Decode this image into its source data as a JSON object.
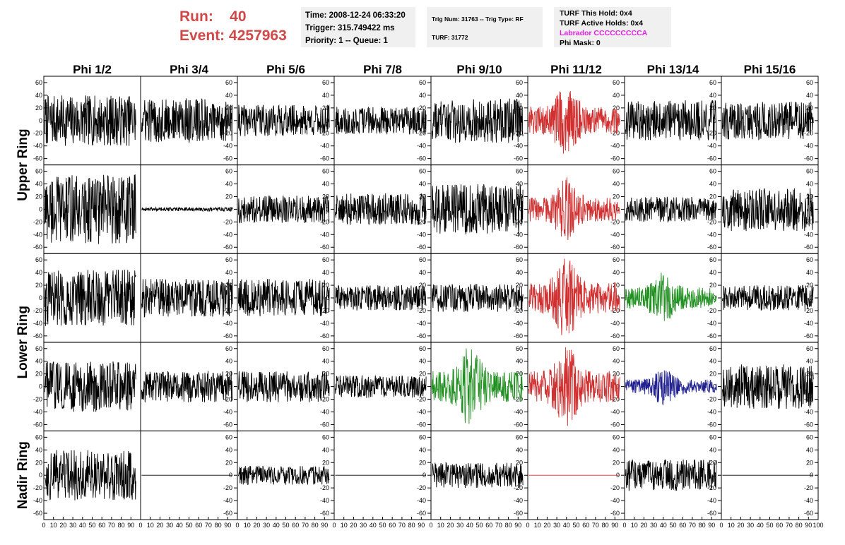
{
  "header": {
    "run_label": "Run:",
    "run_value": "40",
    "event_label": "Event:",
    "event_value": "4257963",
    "time_line": "Time: 2008-12-24 06:33:20",
    "trigger_line": "Trigger: 315.749422 ms",
    "priority_line": "Priority: 1 -- Queue: 1",
    "trig_line": "Trig Num: 31763 -- Trig Type: RF",
    "turf_line": "TURF: 31772",
    "turf_hold": "TURF This Hold: 0x4",
    "turf_active": "TURF Active Holds: 0x4",
    "labrador": "Labrador CCCCCCCCCA",
    "phi_mask": "Phi Mask: 0"
  },
  "chart_data": {
    "type": "line",
    "columns": [
      "Phi 1/2",
      "Phi 3/4",
      "Phi 5/6",
      "Phi 7/8",
      "Phi 9/10",
      "Phi 11/12",
      "Phi 13/14",
      "Phi 15/16"
    ],
    "rows": [
      "Upper Ring",
      "Upper Ring",
      "Lower Ring",
      "Lower Ring",
      "Nadir Ring"
    ],
    "row_labels": [
      "Upper Ring",
      "Lower Ring",
      "Nadir Ring"
    ],
    "xlim": [
      0,
      100
    ],
    "ylim": [
      -70,
      70
    ],
    "yticks": [
      -60,
      -40,
      -20,
      0,
      20,
      40,
      60
    ],
    "xtick_labels": [
      "0",
      "10",
      "20",
      "30",
      "40",
      "50",
      "60",
      "70",
      "80",
      "90",
      "100"
    ],
    "colors": {
      "normal": "#000000",
      "red": "#d03030",
      "green": "#209020",
      "blue": "#202090"
    },
    "panels": [
      [
        "black",
        40
      ],
      [
        "black",
        35
      ],
      [
        "black",
        25
      ],
      [
        "black",
        22
      ],
      [
        "black",
        35
      ],
      [
        "red",
        40
      ],
      [
        "black",
        32
      ],
      [
        "black",
        30
      ],
      [
        "black",
        55
      ],
      [
        "black",
        3
      ],
      [
        "black",
        22
      ],
      [
        "black",
        25
      ],
      [
        "black",
        40
      ],
      [
        "red",
        35
      ],
      [
        "black",
        20
      ],
      [
        "black",
        35
      ],
      [
        "black",
        45
      ],
      [
        "black",
        30
      ],
      [
        "black",
        30
      ],
      [
        "black",
        20
      ],
      [
        "black",
        22
      ],
      [
        "red",
        45
      ],
      [
        "green",
        30
      ],
      [
        "black",
        20
      ],
      [
        "black",
        40
      ],
      [
        "black",
        25
      ],
      [
        "black",
        25
      ],
      [
        "black",
        18
      ],
      [
        "green",
        45
      ],
      [
        "red",
        45
      ],
      [
        "blue",
        20
      ],
      [
        "black",
        35
      ],
      [
        "black",
        40
      ],
      [
        "black",
        0
      ],
      [
        "black",
        15
      ],
      [
        "black",
        0
      ],
      [
        "black",
        20
      ],
      [
        "red",
        0
      ],
      [
        "black",
        25
      ],
      [
        "black",
        0
      ]
    ]
  }
}
